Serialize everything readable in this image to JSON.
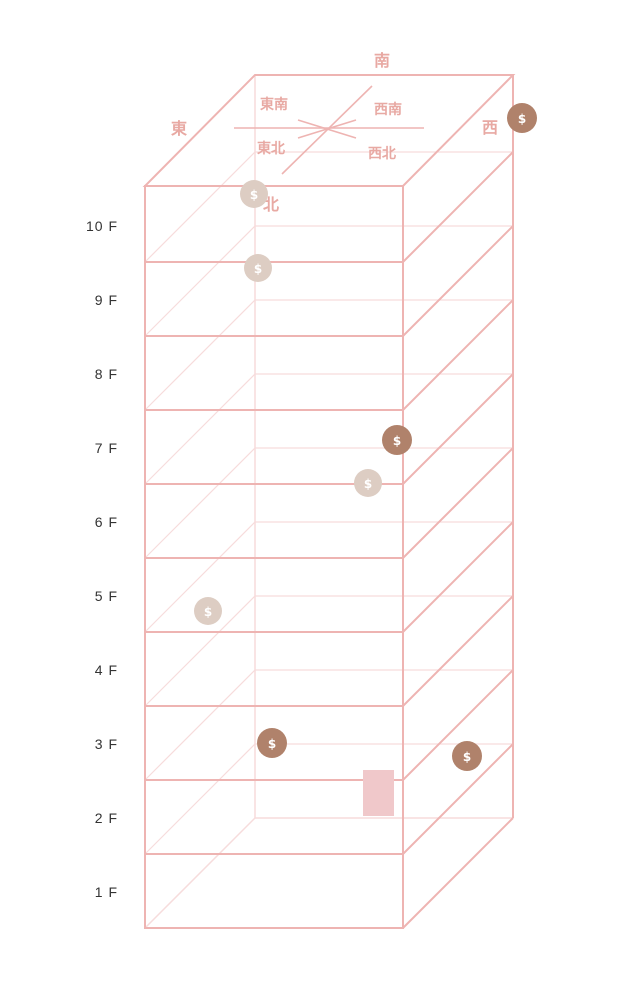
{
  "compass": {
    "south": "南",
    "east": "東",
    "west": "西",
    "north": "北",
    "southeast": "東南",
    "southwest": "西南",
    "northeast": "東北",
    "northwest": "西北"
  },
  "floors": [
    "1 F",
    "2 F",
    "3 F",
    "4 F",
    "5 F",
    "6 F",
    "7 F",
    "8 F",
    "9 F",
    "10 F"
  ],
  "coin_symbol": "$",
  "colors": {
    "frame": "#eeb4b2",
    "frame_faint": "#f5d3d3",
    "coin_dark": "#b0826b",
    "coin_light": "#ddcdc3",
    "door": "#f0c8ca"
  }
}
